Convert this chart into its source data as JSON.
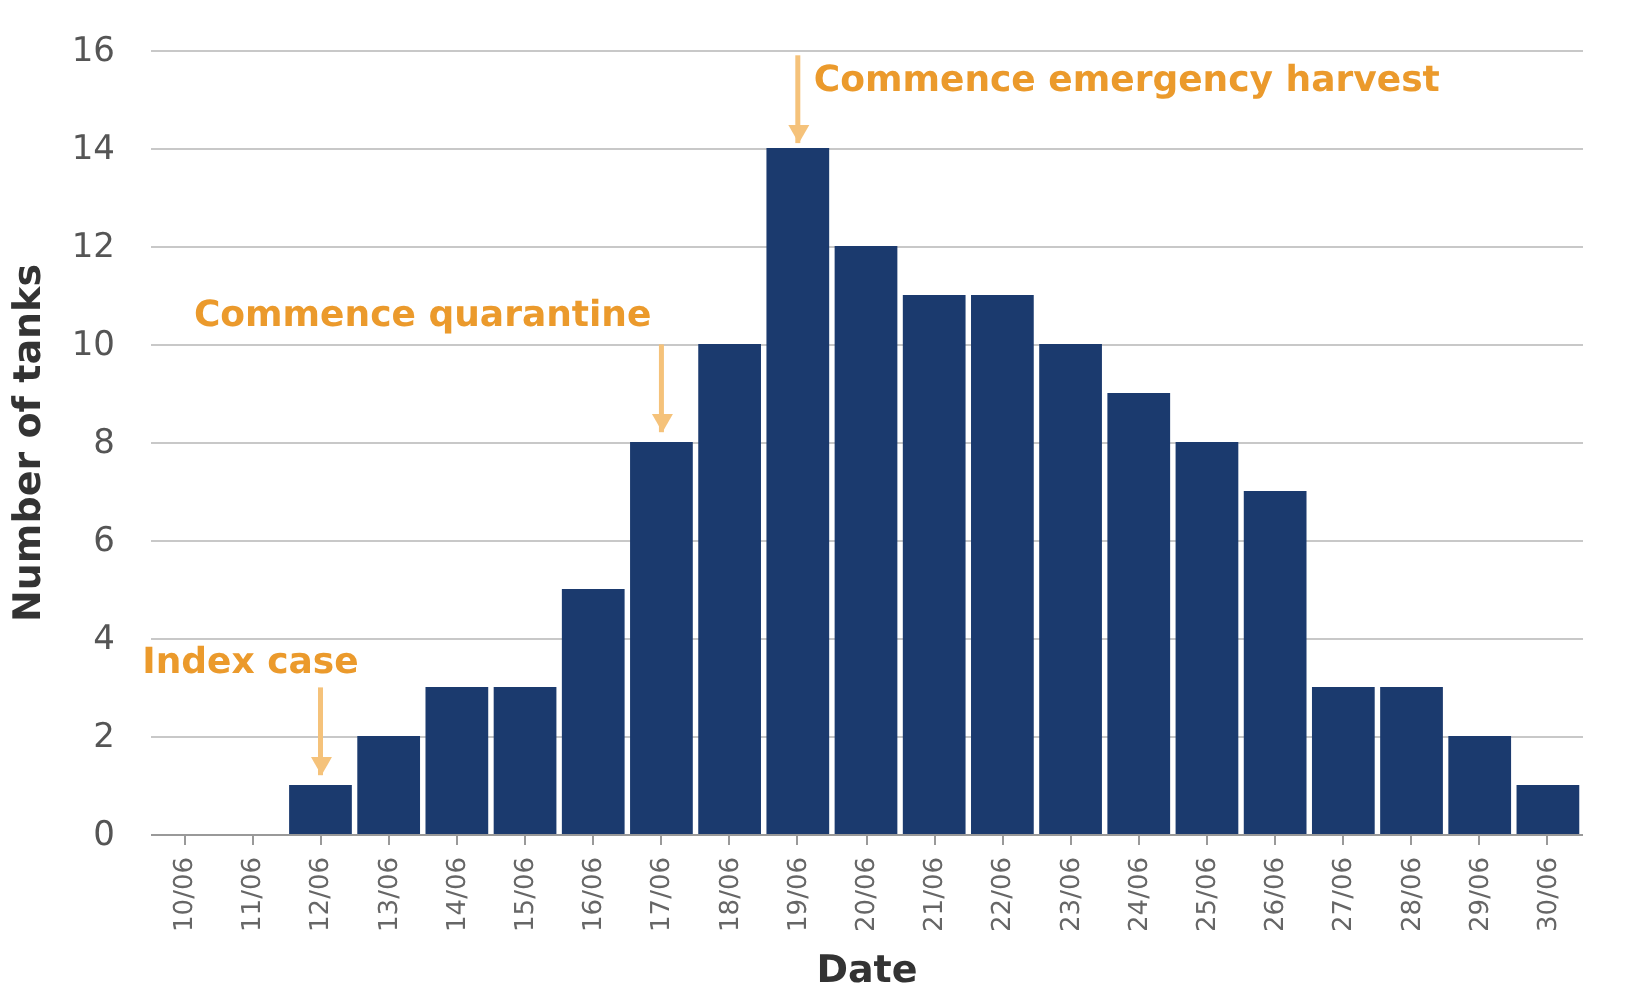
{
  "chart_data": {
    "type": "bar",
    "categories": [
      "10/06",
      "11/06",
      "12/06",
      "13/06",
      "14/06",
      "15/06",
      "16/06",
      "17/06",
      "18/06",
      "19/06",
      "20/06",
      "21/06",
      "22/06",
      "23/06",
      "24/06",
      "25/06",
      "26/06",
      "27/06",
      "28/06",
      "29/06",
      "30/06"
    ],
    "values": [
      0,
      0,
      1,
      2,
      3,
      3,
      5,
      8,
      10,
      14,
      12,
      11,
      11,
      10,
      9,
      8,
      7,
      3,
      3,
      2,
      1
    ],
    "color": "#1b3a6e",
    "xlabel": "Date",
    "ylabel": "Number of tanks",
    "ylim": [
      0,
      16
    ],
    "yticks": [
      0,
      2,
      4,
      6,
      8,
      10,
      12,
      14,
      16
    ],
    "grid": "y",
    "annotations": [
      {
        "text": "Index case",
        "x": "12/06",
        "y": 1.2
      },
      {
        "text": "Commence quarantine",
        "x": "17/06",
        "y": 8.2
      },
      {
        "text": "Commence emergency harvest",
        "x": "19/06",
        "y": 14.1
      }
    ]
  }
}
